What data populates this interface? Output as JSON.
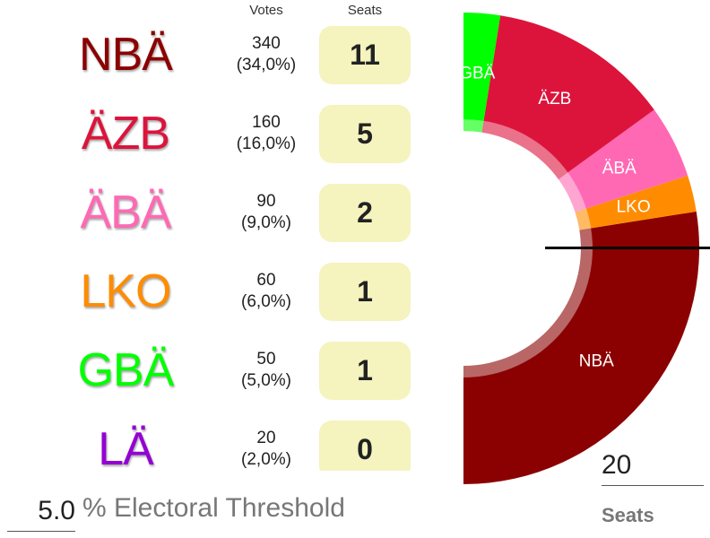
{
  "table": {
    "votes_header": "Votes",
    "seats_header": "Seats",
    "parties": [
      {
        "name": "NBÄ",
        "color": "#8B0000",
        "votes": "340",
        "percent": "(34,0%)",
        "seats": "11"
      },
      {
        "name": "ÄZB",
        "color": "#DC143C",
        "votes": "160",
        "percent": "(16,0%)",
        "seats": "5"
      },
      {
        "name": "ÄBÄ",
        "color": "#FF69B4",
        "votes": "90",
        "percent": "(9,0%)",
        "seats": "2"
      },
      {
        "name": "LKO",
        "color": "#FF8C00",
        "votes": "60",
        "percent": "(6,0%)",
        "seats": "1"
      },
      {
        "name": "GBÄ",
        "color": "#00FF00",
        "votes": "50",
        "percent": "(5,0%)",
        "seats": "1"
      },
      {
        "name": "LÄ",
        "color": "#9400D3",
        "votes": "20",
        "percent": "(2,0%)",
        "seats": "0"
      }
    ]
  },
  "chart_data": {
    "type": "pie",
    "subtype": "semicircle-parliament-donut",
    "title": "",
    "categories": [
      "NBÄ",
      "LKO",
      "ÄBÄ",
      "ÄZB",
      "GBÄ"
    ],
    "values": [
      11,
      1,
      2,
      5,
      1
    ],
    "colors": [
      "#8B0000",
      "#FF8C00",
      "#FF69B4",
      "#DC143C",
      "#00FF00"
    ],
    "total_seats": 20,
    "majority_line": true
  },
  "controls": {
    "seats_value": "20",
    "seats_label": "Seats",
    "threshold_value": "5.0",
    "threshold_label": "% Electoral Threshold"
  }
}
